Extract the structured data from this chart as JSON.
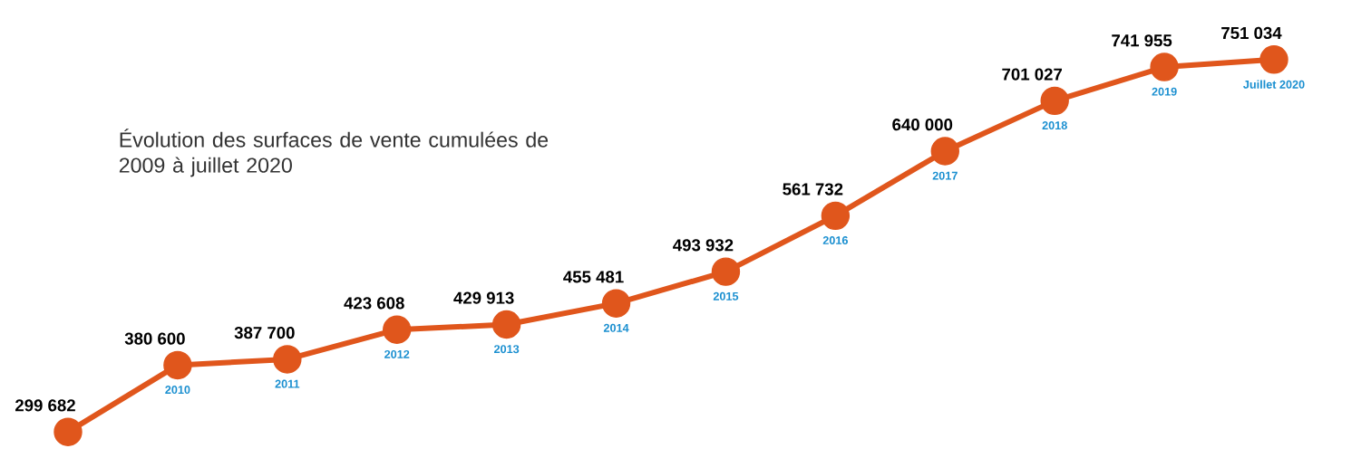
{
  "chart_data": {
    "type": "line",
    "title": "Évolution des surfaces de vente cumulées de 2009 à juillet 2020",
    "categories": [
      null,
      "2010",
      "2011",
      "2012",
      "2013",
      "2014",
      "2015",
      "2016",
      "2017",
      "2018",
      "2019",
      "Juillet 2020"
    ],
    "series": [
      {
        "color": "#e0561c",
        "values": [
          299682,
          380600,
          387700,
          423608,
          429913,
          455481,
          493932,
          561732,
          640000,
          701027,
          741955,
          751034
        ],
        "value_labels": [
          "299 682",
          "380 600",
          "387 700",
          "423 608",
          "429 913",
          "455 481",
          "493 932",
          "561 732",
          "640 000",
          "701 027",
          "741 955",
          "751 034"
        ]
      }
    ],
    "marker": "circle",
    "line_style": "solid"
  }
}
